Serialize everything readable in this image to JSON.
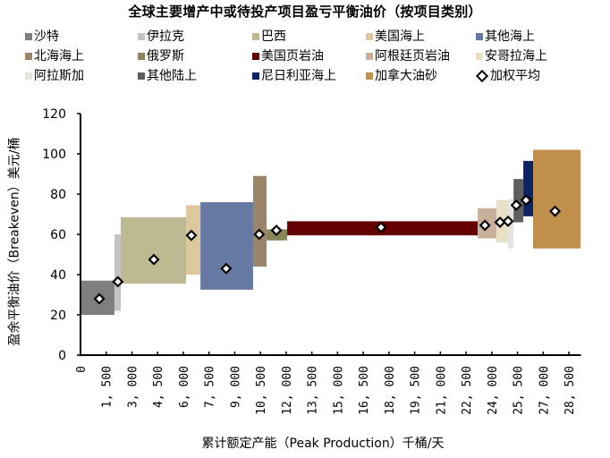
{
  "title": "全球主要增产中或待投产项目盈亏平衡油价（按项目类别）",
  "legend": [
    {
      "label": "沙特",
      "color": "#7f7f7f"
    },
    {
      "label": "伊拉克",
      "color": "#c4c4c4"
    },
    {
      "label": "巴西",
      "color": "#bcb993"
    },
    {
      "label": "美国海上",
      "color": "#dcc89c"
    },
    {
      "label": "其他海上",
      "color": "#6679a3"
    },
    {
      "label": "北海海上",
      "color": "#9c8469"
    },
    {
      "label": "俄罗斯",
      "color": "#868658"
    },
    {
      "label": "美国页岩油",
      "color": "#640000"
    },
    {
      "label": "阿根廷页岩油",
      "color": "#c8b09a"
    },
    {
      "label": "安哥拉海上",
      "color": "#e8dfc4"
    },
    {
      "label": "阿拉斯加",
      "color": "#e4e4de"
    },
    {
      "label": "其他陆上",
      "color": "#5f5f5f"
    },
    {
      "label": "尼日利亚海上",
      "color": "#0c2466"
    },
    {
      "label": "加拿大油砂",
      "color": "#bf8f4b"
    },
    {
      "label": "加权平均",
      "color": "#000000",
      "marker": "diamond"
    }
  ],
  "chart_data": {
    "type": "cost-curve (variable-width bar / marimekko)",
    "title": "全球主要增产中或待投产项目盈亏平衡油价（按项目类别）",
    "xlabel": "累计额定产能（Peak Production）千桶/天",
    "ylabel": "盈余平衡油价（Breakeven）美元/桶",
    "xlim": [
      0,
      29200
    ],
    "ylim": [
      0,
      120
    ],
    "xticks": [
      0,
      1500,
      3000,
      4500,
      6000,
      7500,
      9000,
      10500,
      12000,
      13500,
      15000,
      16500,
      18000,
      19500,
      21000,
      22500,
      24000,
      25500,
      27000,
      28500
    ],
    "xtick_labels": [
      "0",
      "1, 500",
      "3, 000",
      "4, 500",
      "6, 000",
      "7, 500",
      "9, 000",
      "10, 500",
      "12, 000",
      "13, 500",
      "15, 000",
      "16, 500",
      "18, 000",
      "19, 500",
      "21, 000",
      "22, 500",
      "24, 000",
      "25, 500",
      "27, 000",
      "28, 500"
    ],
    "yticks": [
      0,
      20,
      40,
      60,
      80,
      100,
      120
    ],
    "grid": false,
    "legend_position": "top",
    "series": [
      {
        "name": "沙特",
        "x_start": 0,
        "x_end": 1980,
        "low": 20,
        "high": 37,
        "weighted_avg": 28
      },
      {
        "name": "伊拉克",
        "x_start": 1980,
        "x_end": 2350,
        "low": 22,
        "high": 60,
        "weighted_avg": 36.5
      },
      {
        "name": "巴西",
        "x_start": 2350,
        "x_end": 6160,
        "low": 35.5,
        "high": 68.5,
        "weighted_avg": 47.5
      },
      {
        "name": "美国海上",
        "x_start": 6160,
        "x_end": 7000,
        "low": 40,
        "high": 74.5,
        "weighted_avg": 59.5
      },
      {
        "name": "其他海上",
        "x_start": 7000,
        "x_end": 10070,
        "low": 32.5,
        "high": 76,
        "weighted_avg": 43
      },
      {
        "name": "北海海上",
        "x_start": 10070,
        "x_end": 10860,
        "low": 44,
        "high": 89,
        "weighted_avg": 60
      },
      {
        "name": "俄罗斯",
        "x_start": 10860,
        "x_end": 12060,
        "low": 57,
        "high": 62.5,
        "weighted_avg": 62
      },
      {
        "name": "美国页岩油",
        "x_start": 12060,
        "x_end": 23180,
        "low": 59.5,
        "high": 66.5,
        "weighted_avg": 63.5
      },
      {
        "name": "阿根廷页岩油",
        "x_start": 23180,
        "x_end": 24270,
        "low": 58,
        "high": 73,
        "weighted_avg": 64.5
      },
      {
        "name": "安哥拉海上",
        "x_start": 24270,
        "x_end": 24950,
        "low": 56,
        "high": 77,
        "weighted_avg": 66
      },
      {
        "name": "阿拉斯加",
        "x_start": 24950,
        "x_end": 25270,
        "low": 53,
        "high": 77.5,
        "weighted_avg": 66.5
      },
      {
        "name": "其他陆上",
        "x_start": 25270,
        "x_end": 25840,
        "low": 66,
        "high": 87.5,
        "weighted_avg": 74.5
      },
      {
        "name": "尼日利亚海上",
        "x_start": 25840,
        "x_end": 26410,
        "low": 69,
        "high": 96.5,
        "weighted_avg": 77
      },
      {
        "name": "加拿大油砂",
        "x_start": 26410,
        "x_end": 29180,
        "low": 53,
        "high": 102,
        "weighted_avg": 71.5
      }
    ],
    "weighted_avg_x": [
      1100,
      2180,
      4280,
      6470,
      8500,
      10430,
      11430,
      17540,
      23600,
      24480,
      24950,
      25430,
      26000,
      27690
    ]
  },
  "axis": {
    "y_title": "盈余平衡油价（Breakeven）美元/桶",
    "x_title": "累计额定产能（Peak Production）千桶/天"
  }
}
